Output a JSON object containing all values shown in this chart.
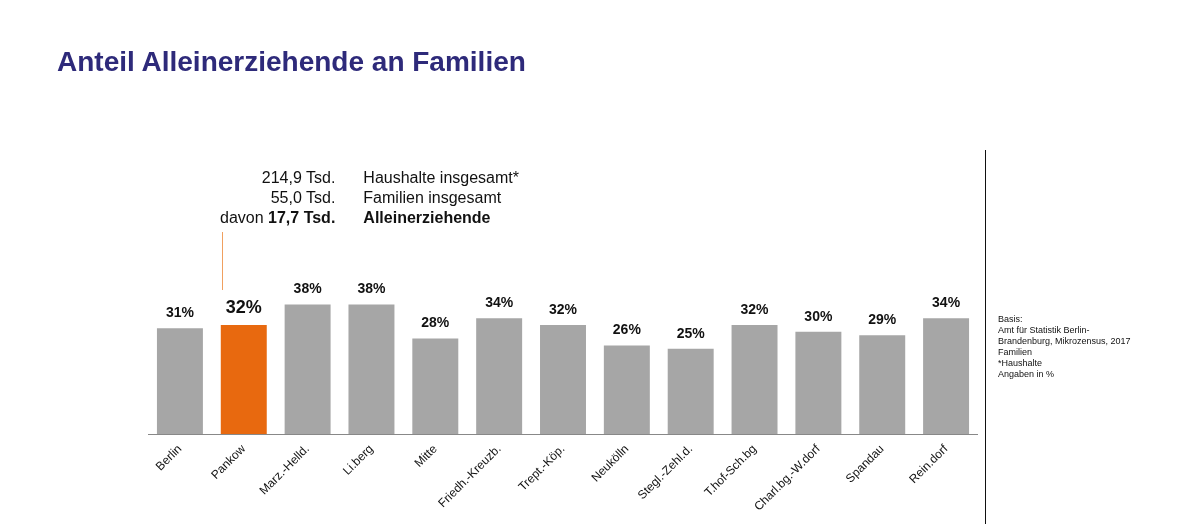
{
  "chart_data": {
    "type": "bar",
    "title": "Anteil Alleinerziehende an Familien",
    "categories": [
      "Berlin",
      "Pankow",
      "Marz.-Helld.",
      "Li.berg",
      "Mitte",
      "Friedh.-Kreuzb.",
      "Trept.-Köp.",
      "Neukölln",
      "Stegl.-Zehl.d.",
      "T.hof-Sch.bg",
      "Charl.bg.-W.dorf",
      "Spandau",
      "Rein.dorf"
    ],
    "values": [
      31,
      32,
      38,
      38,
      28,
      34,
      32,
      26,
      25,
      32,
      30,
      29,
      34
    ],
    "colors": [
      "#a6a6a6",
      "#e8690f",
      "#a6a6a6",
      "#a6a6a6",
      "#a6a6a6",
      "#a6a6a6",
      "#a6a6a6",
      "#a6a6a6",
      "#a6a6a6",
      "#a6a6a6",
      "#a6a6a6",
      "#a6a6a6",
      "#a6a6a6"
    ],
    "value_labels": [
      "31%",
      "32%",
      "38%",
      "38%",
      "28%",
      "34%",
      "32%",
      "26%",
      "25%",
      "32%",
      "30%",
      "29%",
      "34%"
    ],
    "grid": false,
    "legend": false,
    "annotations": [
      "214,9 Tsd.",
      "Haushalte insgesamt*",
      "55,0 Tsd.",
      "Familien insgesamt",
      "davon 17,7 Tsd.",
      "Alleinerziehende",
      "Basis:\nAmt für Statistik Berlin-\nBrandenburg, Mikrozensus, 2017\nFamilien\n*Haushalte\nAngaben in %"
    ]
  }
}
